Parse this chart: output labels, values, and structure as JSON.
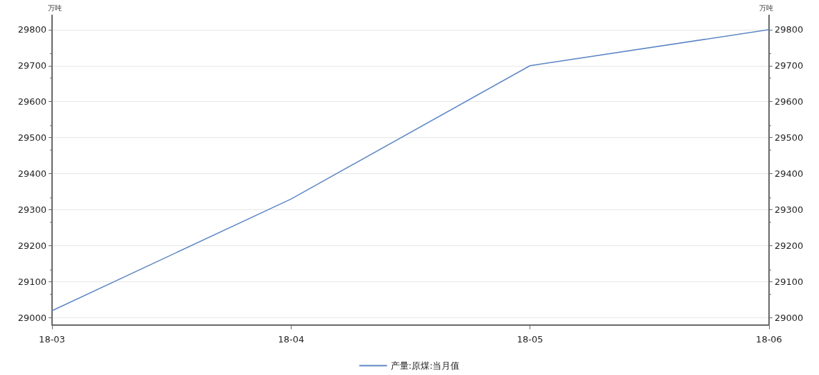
{
  "chart_data": {
    "type": "line",
    "categories": [
      "18-03",
      "18-04",
      "18-05",
      "18-06"
    ],
    "series": [
      {
        "name": "产量:原煤:当月值",
        "color": "#5b86c5",
        "values": [
          29020,
          29330,
          29700,
          29800
        ]
      }
    ],
    "ylabel": "万吨",
    "y2label": "万吨",
    "ylim": [
      28980,
      29840
    ],
    "yticks": [
      29000,
      29100,
      29200,
      29300,
      29400,
      29500,
      29600,
      29700,
      29800
    ],
    "y2lim": [
      28980,
      29840
    ],
    "y2ticks": [
      29000,
      29100,
      29200,
      29300,
      29400,
      29500,
      29600,
      29700,
      29800
    ],
    "grid": "y",
    "legend": "bottom",
    "marker": "none",
    "line_style": "solid"
  }
}
